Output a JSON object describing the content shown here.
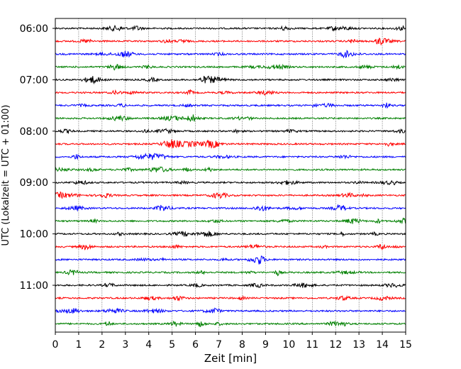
{
  "chart_data": {
    "type": "line",
    "xlabel": "Zeit  [min]",
    "ylabel": "UTC (Lokalzeit = UTC + 01:00)",
    "xlim": [
      0,
      15
    ],
    "xticks": [
      "0",
      "1",
      "2",
      "3",
      "4",
      "5",
      "6",
      "7",
      "8",
      "9",
      "10",
      "11",
      "12",
      "13",
      "14",
      "15"
    ],
    "yticks": [
      "06:00",
      "07:00",
      "08:00",
      "09:00",
      "10:00",
      "11:00"
    ],
    "grid": {
      "vertical": true,
      "horizontal": false
    },
    "trace_colors": [
      "#000000",
      "#ff0000",
      "#0000ff",
      "#008000"
    ],
    "trace_count": 24,
    "trace_interval_minutes": 15,
    "start_time": "06:00"
  }
}
